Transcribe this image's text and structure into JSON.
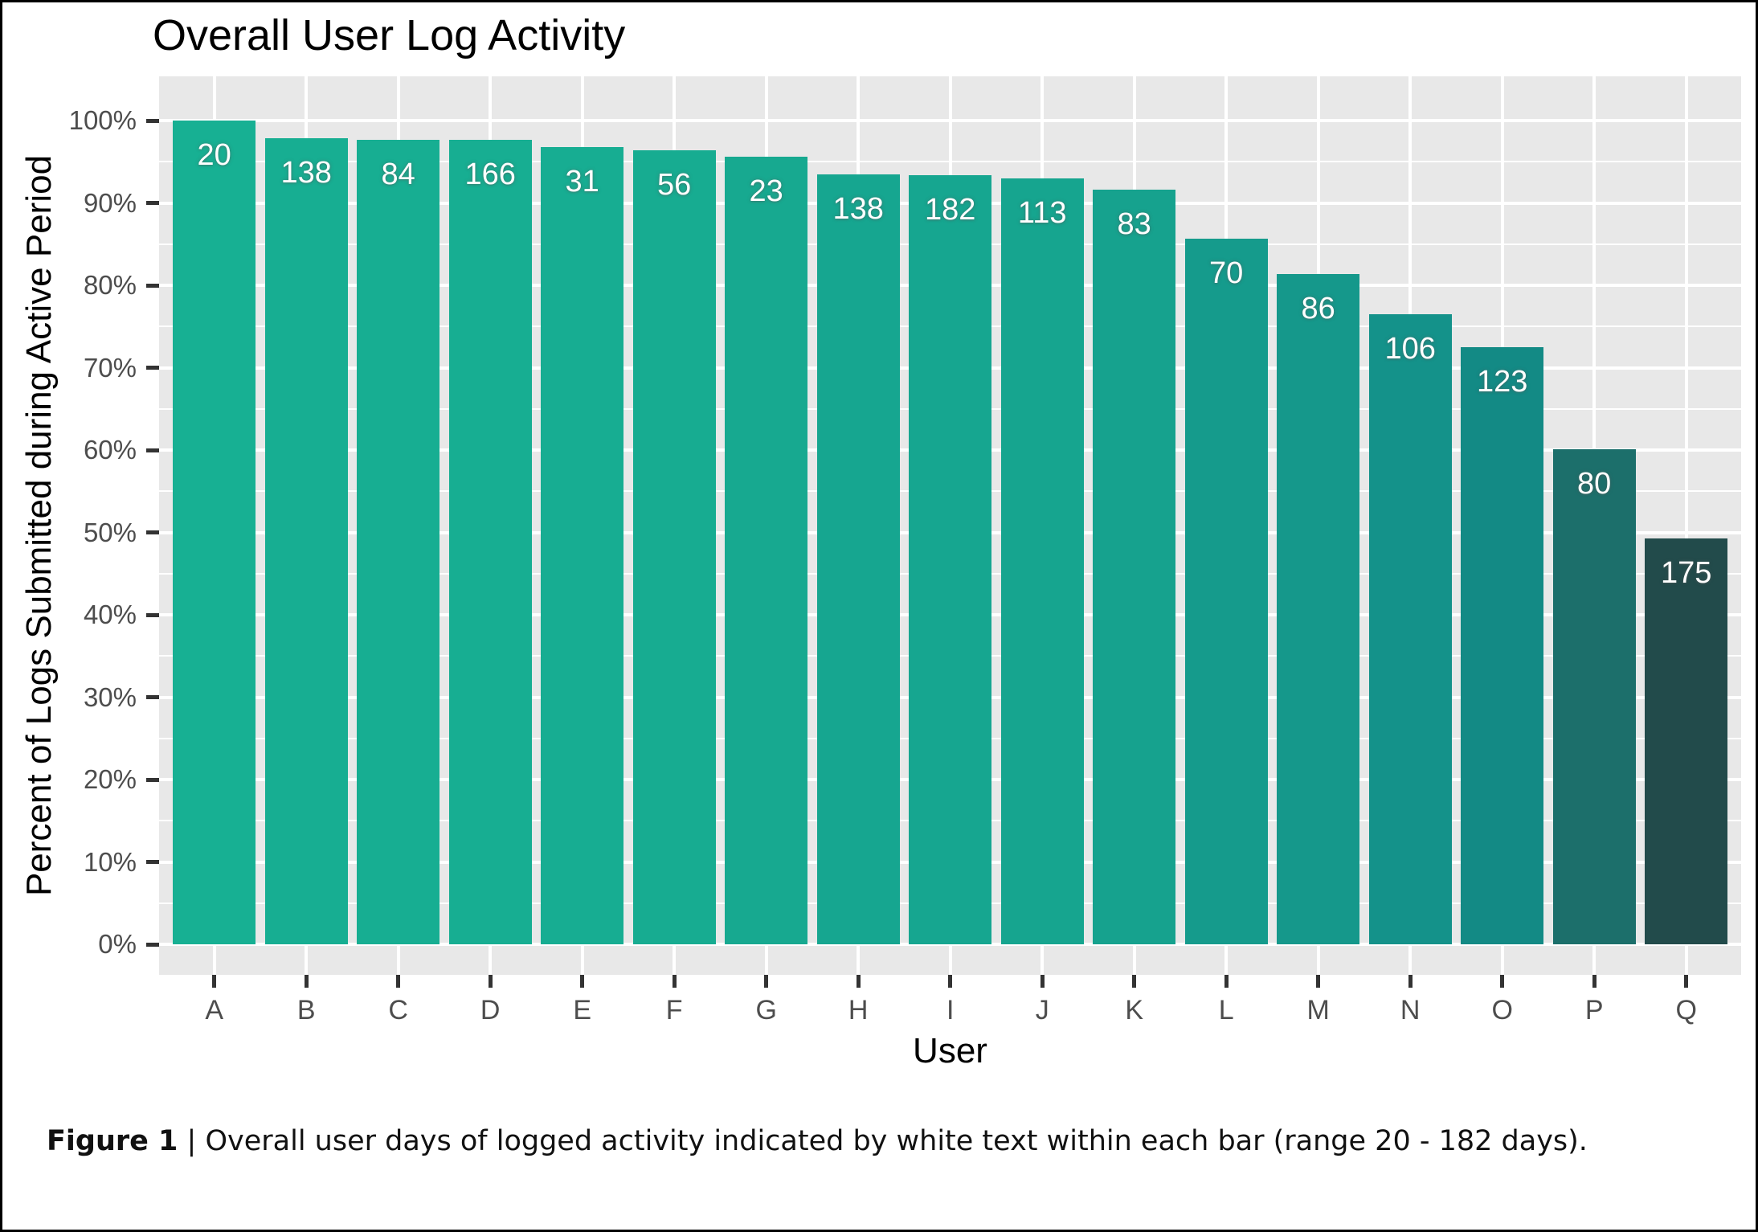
{
  "page": {
    "background": "#FFFFFF",
    "border_color": "#000000"
  },
  "figure": {
    "title": "Overall User Log Activity",
    "caption": {
      "bold": "Figure 1",
      "rest": " | Overall user days of logged activity indicated by white text within each bar (range 20 - 182 days)."
    }
  },
  "chart_data": {
    "type": "bar",
    "title": "Overall User Log Activity",
    "xlabel": "User",
    "ylabel": "Percent of Logs Submitted during Active Period",
    "categories": [
      "A",
      "B",
      "C",
      "D",
      "E",
      "F",
      "G",
      "H",
      "I",
      "J",
      "K",
      "L",
      "M",
      "N",
      "O",
      "P",
      "Q"
    ],
    "series": [
      {
        "name": "percent_of_logs_submitted_during_active_period",
        "unit": "%",
        "values": [
          100,
          97.9,
          97.7,
          97.7,
          96.8,
          96.4,
          95.6,
          93.5,
          93.4,
          93.0,
          91.6,
          85.7,
          81.4,
          76.5,
          72.5,
          60.1,
          49.3
        ]
      },
      {
        "name": "days_of_logged_activity_bar_labels",
        "unit": "days",
        "values": [
          20,
          138,
          84,
          166,
          31,
          56,
          23,
          138,
          182,
          113,
          83,
          70,
          86,
          106,
          123,
          80,
          175
        ]
      }
    ],
    "bar_colors": [
      "#17B093",
      "#17AE92",
      "#17AE92",
      "#17AE92",
      "#17AD92",
      "#17AC91",
      "#17A990",
      "#16A690",
      "#16A690",
      "#16A58F",
      "#16A28E",
      "#159B8C",
      "#15988B",
      "#14928A",
      "#138A85",
      "#1C6F6B",
      "#224B4B"
    ],
    "ylim": [
      0,
      100
    ],
    "yticks": [
      "0%",
      "10%",
      "20%",
      "30%",
      "40%",
      "50%",
      "60%",
      "70%",
      "80%",
      "90%",
      "100%"
    ],
    "grid": {
      "major_color": "#FFFFFF",
      "minor_color": "#FFFFFF",
      "panel_bg": "#E8E8E8",
      "major_every_pct": 10,
      "minor_every_pct": 5
    },
    "legend": "none",
    "bar_label_color": "#FFFFFF",
    "tick_label_color": "#4D4D4D",
    "axis_tick_color": "#333333"
  }
}
